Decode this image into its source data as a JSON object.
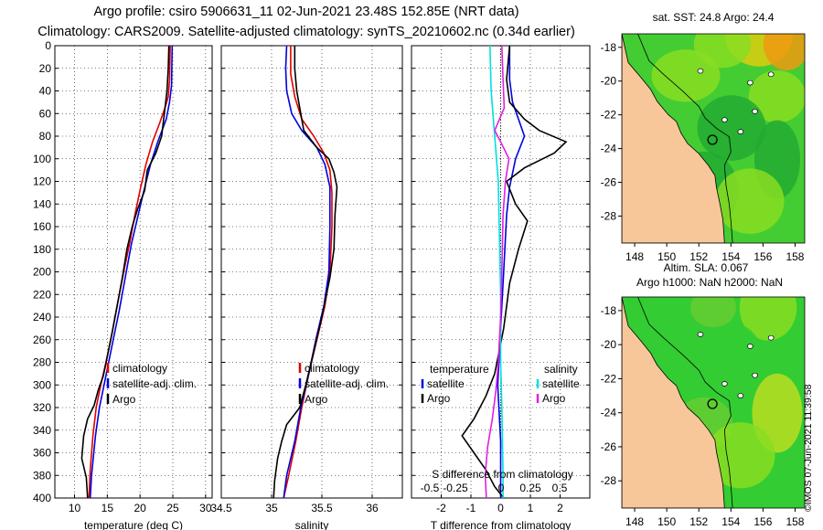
{
  "titles": {
    "line1": "Argo profile: csiro 5906631_11 02-Jun-2021 23.48S 152.85E (NRT data)",
    "line2": "Climatology: CARS2009. Satellite-adjusted climatology: synTS_20210602.nc (0.34d earlier)"
  },
  "watermark": "©IMOS 07-Jun-2021 11:39:58",
  "colors": {
    "climatology": "#e00000",
    "satellite": "#0000e0",
    "argo": "#000000",
    "sal_sat": "#00e0e0",
    "sal_argo": "#e020e0"
  },
  "depth_ticks": [
    "0",
    "20",
    "40",
    "60",
    "80",
    "100",
    "120",
    "140",
    "160",
    "180",
    "200",
    "220",
    "240",
    "260",
    "280",
    "300",
    "320",
    "340",
    "360",
    "380",
    "400"
  ],
  "chart_data": [
    {
      "type": "line",
      "xlabel": "temperature (deg C)",
      "xlim": [
        7,
        31
      ],
      "ylim": [
        400,
        0
      ],
      "x_ticks": [
        "10",
        "15",
        "20",
        "25",
        "30"
      ],
      "legend": [
        "climatology",
        "satellite-adj. clim.",
        "Argo"
      ],
      "series": [
        {
          "name": "climatology",
          "color": "#e00000",
          "points": [
            [
              24.6,
              0
            ],
            [
              24.5,
              30
            ],
            [
              24.3,
              45
            ],
            [
              23.8,
              55
            ],
            [
              22.9,
              70
            ],
            [
              21.9,
              85
            ],
            [
              20.9,
              105
            ],
            [
              20.1,
              125
            ],
            [
              19.2,
              150
            ],
            [
              18.4,
              175
            ],
            [
              17.5,
              200
            ],
            [
              16.5,
              230
            ],
            [
              15.7,
              255
            ],
            [
              14.8,
              280
            ],
            [
              14.0,
              300
            ],
            [
              13.3,
              320
            ],
            [
              12.8,
              345
            ],
            [
              12.4,
              375
            ],
            [
              12.2,
              400
            ]
          ]
        },
        {
          "name": "satellite-adj. clim.",
          "color": "#0000e0",
          "points": [
            [
              24.9,
              0
            ],
            [
              24.8,
              35
            ],
            [
              24.5,
              50
            ],
            [
              24.0,
              65
            ],
            [
              22.7,
              85
            ],
            [
              21.6,
              105
            ],
            [
              20.5,
              130
            ],
            [
              19.5,
              155
            ],
            [
              18.7,
              175
            ],
            [
              17.9,
              200
            ],
            [
              16.8,
              235
            ],
            [
              15.9,
              260
            ],
            [
              15.2,
              280
            ],
            [
              14.5,
              300
            ],
            [
              13.8,
              320
            ],
            [
              13.2,
              345
            ],
            [
              12.6,
              380
            ],
            [
              12.4,
              400
            ]
          ]
        },
        {
          "name": "Argo",
          "color": "#000000",
          "points": [
            [
              24.4,
              0
            ],
            [
              24.3,
              20
            ],
            [
              24.1,
              40
            ],
            [
              23.7,
              60
            ],
            [
              23.3,
              80
            ],
            [
              22.4,
              95
            ],
            [
              21.1,
              110
            ],
            [
              20.7,
              128
            ],
            [
              19.6,
              145
            ],
            [
              18.8,
              160
            ],
            [
              18.0,
              180
            ],
            [
              17.3,
              205
            ],
            [
              16.5,
              230
            ],
            [
              15.7,
              255
            ],
            [
              15.0,
              275
            ],
            [
              14.4,
              292
            ],
            [
              13.6,
              305
            ],
            [
              13.0,
              318
            ],
            [
              12.0,
              330
            ],
            [
              11.4,
              345
            ],
            [
              11.1,
              365
            ],
            [
              11.8,
              382
            ],
            [
              12.0,
              400
            ]
          ]
        }
      ]
    },
    {
      "type": "line",
      "xlabel": "salinity",
      "xlim": [
        34.5,
        36.3
      ],
      "ylim": [
        400,
        0
      ],
      "x_ticks": [
        "34.5",
        "35",
        "35.5",
        "36"
      ],
      "legend": [
        "climatology",
        "satellite-adj. clim.",
        "Argo"
      ],
      "series": [
        {
          "name": "climatology",
          "color": "#e00000",
          "points": [
            [
              35.19,
              0
            ],
            [
              35.19,
              25
            ],
            [
              35.23,
              45
            ],
            [
              35.3,
              65
            ],
            [
              35.42,
              80
            ],
            [
              35.52,
              95
            ],
            [
              35.58,
              110
            ],
            [
              35.6,
              130
            ],
            [
              35.6,
              160
            ],
            [
              35.58,
              200
            ],
            [
              35.53,
              230
            ],
            [
              35.45,
              260
            ],
            [
              35.37,
              290
            ],
            [
              35.3,
              320
            ],
            [
              35.24,
              350
            ],
            [
              35.17,
              380
            ],
            [
              35.12,
              400
            ]
          ]
        },
        {
          "name": "satellite-adj. clim.",
          "color": "#0000e0",
          "points": [
            [
              35.15,
              0
            ],
            [
              35.14,
              20
            ],
            [
              35.15,
              40
            ],
            [
              35.2,
              60
            ],
            [
              35.3,
              75
            ],
            [
              35.45,
              90
            ],
            [
              35.53,
              105
            ],
            [
              35.58,
              125
            ],
            [
              35.58,
              160
            ],
            [
              35.57,
              200
            ],
            [
              35.52,
              230
            ],
            [
              35.44,
              260
            ],
            [
              35.37,
              290
            ],
            [
              35.29,
              320
            ],
            [
              35.23,
              350
            ],
            [
              35.15,
              380
            ],
            [
              35.12,
              400
            ]
          ]
        },
        {
          "name": "Argo",
          "color": "#000000",
          "points": [
            [
              35.23,
              0
            ],
            [
              35.23,
              20
            ],
            [
              35.25,
              40
            ],
            [
              35.28,
              55
            ],
            [
              35.32,
              75
            ],
            [
              35.45,
              90
            ],
            [
              35.57,
              100
            ],
            [
              35.62,
              112
            ],
            [
              35.65,
              125
            ],
            [
              35.63,
              150
            ],
            [
              35.62,
              180
            ],
            [
              35.58,
              205
            ],
            [
              35.5,
              240
            ],
            [
              35.42,
              270
            ],
            [
              35.34,
              300
            ],
            [
              35.28,
              320
            ],
            [
              35.15,
              335
            ],
            [
              35.1,
              350
            ],
            [
              35.06,
              365
            ],
            [
              35.03,
              385
            ],
            [
              35.02,
              400
            ]
          ]
        }
      ]
    },
    {
      "type": "line",
      "xlabel": "T difference from climatology",
      "top_label": "S difference from climatology",
      "xlim": [
        -3,
        3
      ],
      "ylim": [
        400,
        0
      ],
      "x_ticks": [
        "-2",
        "-1",
        "0",
        "1",
        "2"
      ],
      "top_ticks": [
        "-0.5",
        "-0.25",
        "0",
        "0.25",
        "0.5"
      ],
      "legend_left_header": "temperature",
      "legend_right_header": "salinity",
      "legend_left": [
        "satellite",
        "Argo"
      ],
      "legend_right": [
        "satellite",
        "Argo"
      ],
      "series": [
        {
          "name": "T satellite",
          "color": "#0000e0",
          "points": [
            [
              0.3,
              0
            ],
            [
              0.3,
              30
            ],
            [
              0.4,
              50
            ],
            [
              0.6,
              65
            ],
            [
              0.8,
              80
            ],
            [
              0.5,
              100
            ],
            [
              0.3,
              125
            ],
            [
              0.2,
              150
            ],
            [
              0.1,
              200
            ],
            [
              0.0,
              250
            ],
            [
              -0.1,
              300
            ],
            [
              0.0,
              350
            ],
            [
              0.0,
              400
            ]
          ]
        },
        {
          "name": "T Argo",
          "color": "#000000",
          "points": [
            [
              0.3,
              0
            ],
            [
              0.2,
              30
            ],
            [
              0.3,
              50
            ],
            [
              0.8,
              65
            ],
            [
              1.3,
              75
            ],
            [
              2.2,
              85
            ],
            [
              1.8,
              95
            ],
            [
              0.8,
              108
            ],
            [
              0.2,
              120
            ],
            [
              0.5,
              140
            ],
            [
              0.9,
              155
            ],
            [
              0.6,
              180
            ],
            [
              0.3,
              210
            ],
            [
              0.1,
              250
            ],
            [
              -0.2,
              290
            ],
            [
              -0.5,
              310
            ],
            [
              -0.9,
              330
            ],
            [
              -1.3,
              345
            ],
            [
              -0.9,
              360
            ],
            [
              -0.5,
              375
            ],
            [
              -0.2,
              390
            ],
            [
              0.1,
              400
            ]
          ]
        },
        {
          "name": "S satellite",
          "color": "#00e0e0",
          "points": [
            [
              -0.09,
              0
            ],
            [
              -0.08,
              40
            ],
            [
              -0.05,
              80
            ],
            [
              -0.02,
              120
            ],
            [
              -0.01,
              170
            ],
            [
              0.0,
              220
            ],
            [
              0.0,
              280
            ],
            [
              0.01,
              320
            ],
            [
              0.02,
              380
            ],
            [
              0.02,
              400
            ]
          ]
        },
        {
          "name": "S Argo",
          "color": "#e020e0",
          "points": [
            [
              0.01,
              0
            ],
            [
              0.02,
              30
            ],
            [
              0.03,
              55
            ],
            [
              -0.05,
              75
            ],
            [
              0.0,
              85
            ],
            [
              0.07,
              100
            ],
            [
              0.04,
              120
            ],
            [
              0.02,
              150
            ],
            [
              0.01,
              200
            ],
            [
              0.0,
              240
            ],
            [
              -0.02,
              280
            ],
            [
              -0.04,
              305
            ],
            [
              -0.07,
              330
            ],
            [
              -0.11,
              355
            ],
            [
              -0.13,
              380
            ],
            [
              -0.12,
              400
            ]
          ]
        }
      ]
    }
  ],
  "maps": [
    {
      "title": "sat. SST: 24.8 Argo: 24.4",
      "x_ticks": [
        "148",
        "150",
        "152",
        "154",
        "156",
        "158"
      ],
      "y_ticks": [
        "-18",
        "-20",
        "-22",
        "-24",
        "-26",
        "-28"
      ]
    },
    {
      "title_line1": "Altim. SLA: 0.067",
      "title_line2": "Argo h1000: NaN h2000: NaN",
      "x_ticks": [
        "148",
        "150",
        "152",
        "154",
        "156",
        "158"
      ],
      "y_ticks": [
        "-18",
        "-20",
        "-22",
        "-24",
        "-26",
        "-28"
      ]
    }
  ]
}
